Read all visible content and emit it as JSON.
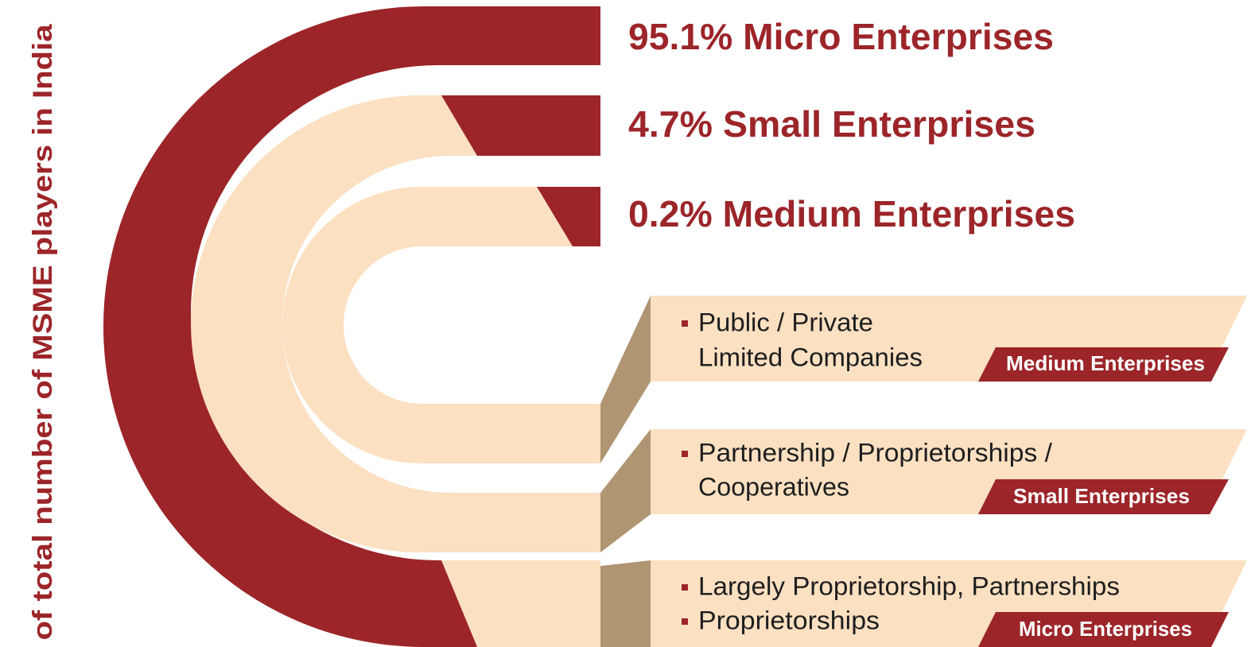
{
  "side_label": "of total number of MSME players in India",
  "stats": [
    "95.1% Micro Enterprises",
    "4.7% Small Enterprises",
    "0.2% Medium Enterprises"
  ],
  "panels": [
    {
      "bullets": [
        [
          "Public / Private",
          "Limited Companies"
        ]
      ],
      "tag": "Medium Enterprises"
    },
    {
      "bullets": [
        [
          "Partnership / Proprietorships /",
          "Cooperatives"
        ]
      ],
      "tag": "Small Enterprises"
    },
    {
      "bullets": [
        [
          "Largely Proprietorship, Partnerships"
        ],
        [
          "Proprietorships"
        ]
      ],
      "tag": "Micro Enterprises"
    }
  ]
}
